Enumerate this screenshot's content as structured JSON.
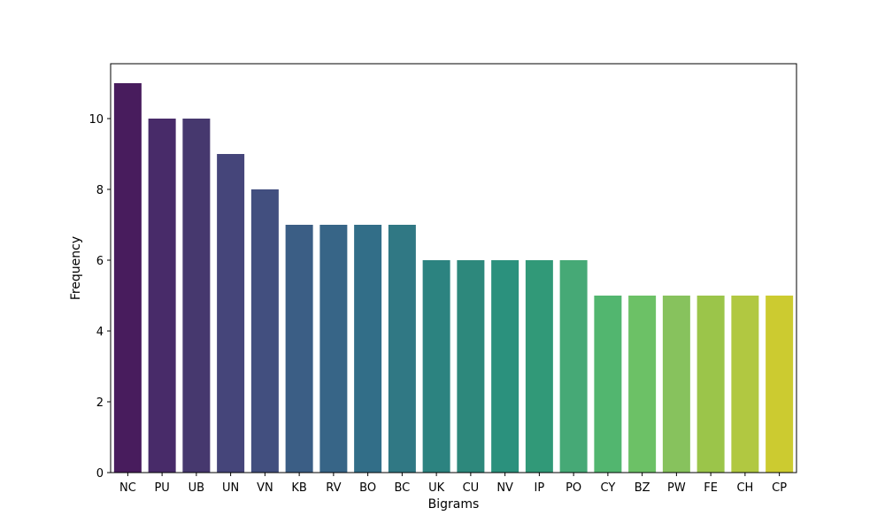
{
  "chart_data": {
    "type": "bar",
    "title": "",
    "xlabel": "Bigrams",
    "ylabel": "Frequency",
    "categories": [
      "NC",
      "PU",
      "UB",
      "UN",
      "VN",
      "KB",
      "RV",
      "BO",
      "BC",
      "UK",
      "CU",
      "NV",
      "IP",
      "PO",
      "CY",
      "BZ",
      "PW",
      "FE",
      "CH",
      "CP"
    ],
    "values": [
      11,
      10,
      10,
      9,
      8,
      7,
      7,
      7,
      7,
      6,
      6,
      6,
      6,
      6,
      5,
      5,
      5,
      5,
      5,
      5
    ],
    "ylim": [
      0,
      11.55
    ],
    "yticks": [
      0,
      2,
      4,
      6,
      8,
      10
    ],
    "grid": false,
    "colors": [
      "#481C5D",
      "#482B69",
      "#46386E",
      "#45457A",
      "#424F7F",
      "#3B5E85",
      "#376587",
      "#326E88",
      "#307884",
      "#2C8380",
      "#2D887C",
      "#2B917D",
      "#319978",
      "#46A976",
      "#52B66F",
      "#6CC166",
      "#87C25D",
      "#9BC54A",
      "#B1C841",
      "#CCCB30"
    ]
  }
}
